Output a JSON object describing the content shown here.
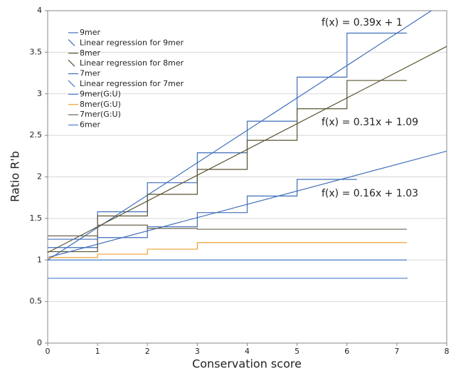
{
  "chart_data": {
    "type": "line",
    "step": "post",
    "grid": true,
    "legend": "upper left",
    "xlabel": "Conservation score",
    "ylabel": "Ratio R'b",
    "xlim": [
      0,
      8
    ],
    "xticks": [
      0,
      1,
      2,
      3,
      4,
      5,
      6,
      7,
      8
    ],
    "ylim": [
      0,
      4
    ],
    "yticks": [
      0,
      0.5,
      1,
      1.5,
      2,
      2.5,
      3,
      3.5,
      4
    ],
    "annotations": [
      "f(x) = 0.39x + 1",
      "f(x) = 0.31x + 1.09",
      "f(x) = 0.16x + 1.03"
    ],
    "series": [
      {
        "name": "9mer",
        "color": "#3f6fba",
        "x": [
          0,
          1,
          2,
          3,
          4,
          5,
          6,
          7.2
        ],
        "values": [
          1.15,
          1.58,
          1.93,
          2.29,
          2.67,
          3.2,
          3.73,
          3.73
        ]
      },
      {
        "name": "Linear regression for 9mer",
        "color": "#3f6fba",
        "style": "straight",
        "x": [
          0,
          8
        ],
        "values": [
          1,
          4.12
        ]
      },
      {
        "name": "8mer",
        "color": "#5a5431",
        "x": [
          0,
          1,
          2,
          3,
          4,
          5,
          6,
          7.2
        ],
        "values": [
          1.1,
          1.53,
          1.79,
          2.09,
          2.44,
          2.82,
          3.16,
          3.16
        ]
      },
      {
        "name": "Linear regression for 8mer",
        "color": "#5a5431",
        "style": "straight",
        "x": [
          0,
          8
        ],
        "values": [
          1.09,
          3.57
        ]
      },
      {
        "name": "7mer",
        "color": "#3f6fba",
        "x": [
          0,
          1,
          2,
          3,
          4,
          5,
          6.2
        ],
        "values": [
          1.25,
          1.27,
          1.4,
          1.57,
          1.77,
          1.97,
          1.97
        ]
      },
      {
        "name": "Linear regression for 7mer",
        "color": "#3f6fba",
        "style": "straight",
        "x": [
          0,
          8
        ],
        "values": [
          1.03,
          2.31
        ]
      },
      {
        "name": "9mer(G:U)",
        "color": "#4a7fd0",
        "x": [
          0,
          7.2
        ],
        "values": [
          1.0,
          1.0
        ]
      },
      {
        "name": "8mer(G:U)",
        "color": "#f0a030",
        "x": [
          0,
          1,
          2,
          3,
          7.2
        ],
        "values": [
          1.03,
          1.07,
          1.13,
          1.21,
          1.21
        ]
      },
      {
        "name": "7mer(G:U)",
        "color": "#6a6450",
        "x": [
          0,
          1,
          2,
          3,
          7.2
        ],
        "values": [
          1.29,
          1.42,
          1.38,
          1.37,
          1.37
        ]
      },
      {
        "name": "6mer",
        "color": "#4a7fd0",
        "x": [
          0,
          7.2
        ],
        "values": [
          0.78,
          0.79
        ]
      }
    ]
  }
}
